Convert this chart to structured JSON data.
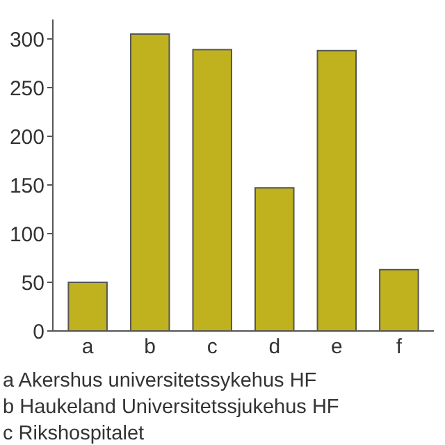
{
  "chart_data": {
    "type": "bar",
    "categories": [
      "a",
      "b",
      "c",
      "d",
      "e",
      "f"
    ],
    "values": [
      50,
      305,
      289,
      147,
      288,
      63
    ],
    "color": "#bfb21e",
    "ylim": [
      0,
      320
    ],
    "yticks": [
      0,
      50,
      100,
      150,
      200,
      250,
      300
    ],
    "grid": false,
    "annotations": [
      "a  Akershus universitetssykehus HF",
      "b  Haukeland Universitetssjukehus HF",
      "c  Rikshospitalet"
    ]
  }
}
